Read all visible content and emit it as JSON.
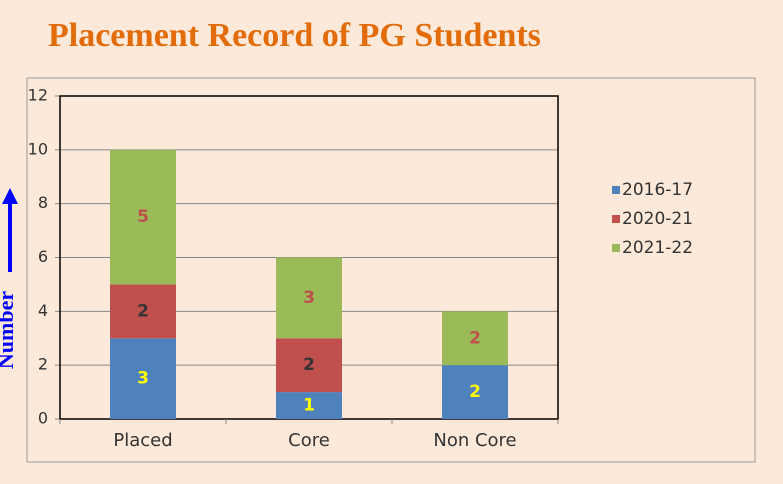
{
  "chart_data": {
    "type": "stacked-bar",
    "title": "Placement Record of PG Students",
    "y_label": "Number",
    "categories": [
      "Placed",
      "Core",
      "Non Core"
    ],
    "series": [
      {
        "name": "2016-17",
        "color": "#4f81bd",
        "label_color": "#ffff00",
        "values": [
          3,
          1,
          2
        ]
      },
      {
        "name": "2020-21",
        "color": "#c0504d",
        "label_color": "#333333",
        "values": [
          2,
          2,
          0
        ]
      },
      {
        "name": "2021-22",
        "color": "#9bbb59",
        "label_color": "#c0504d",
        "values": [
          5,
          3,
          2
        ]
      }
    ],
    "ylim": [
      0,
      12
    ],
    "yticks": [
      0,
      2,
      4,
      6,
      8,
      10,
      12
    ],
    "grid": true,
    "legend": "right"
  }
}
